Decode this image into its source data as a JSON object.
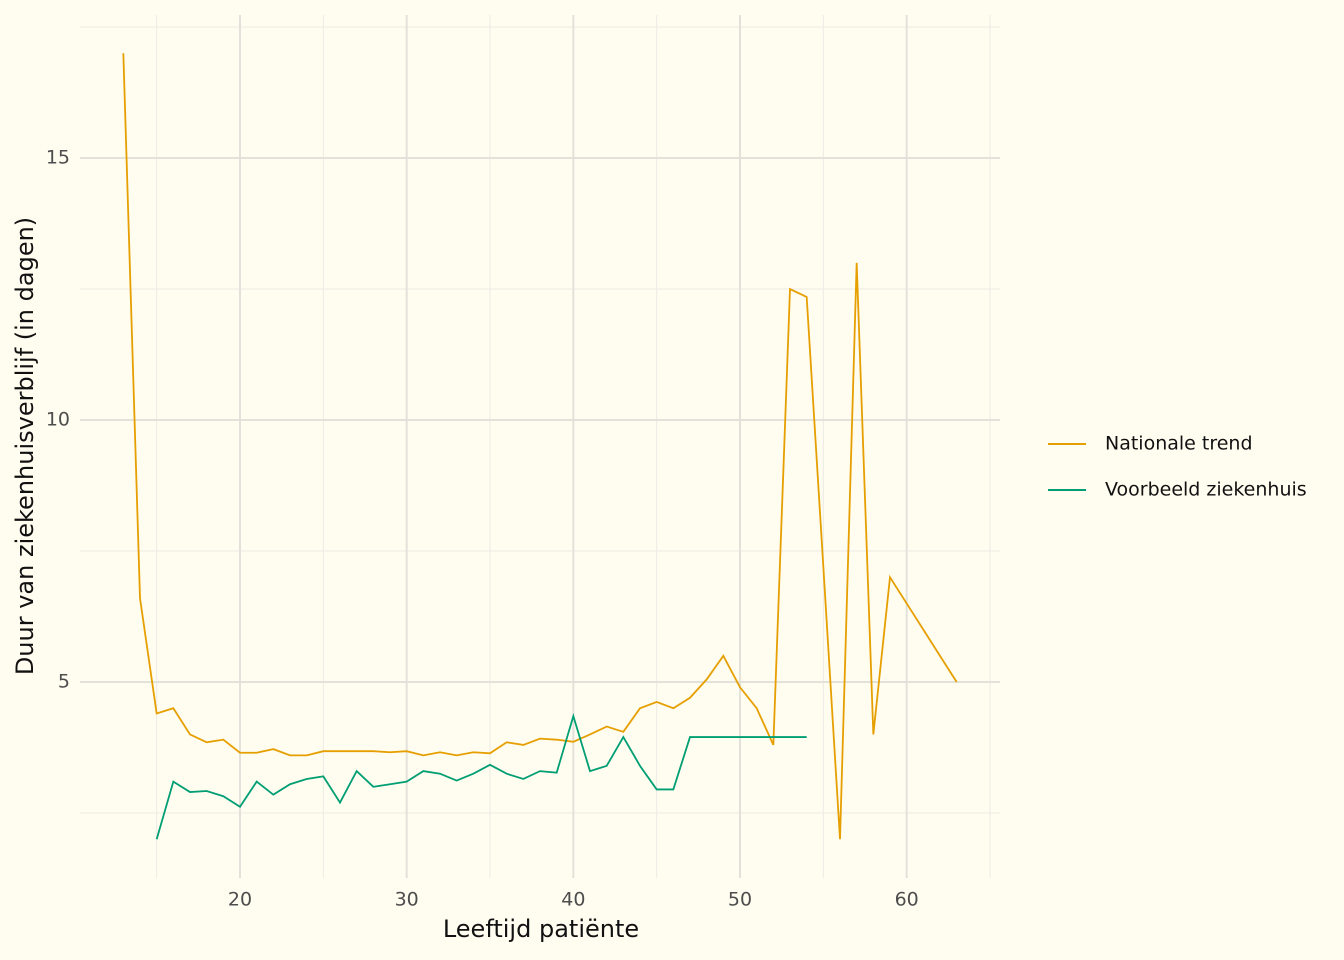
{
  "chart_data": {
    "type": "line",
    "x_label": "Leeftijd patiënte",
    "y_label": "Duur van ziekenhuisverblijf (in dagen)",
    "x": [
      13,
      14,
      15,
      16,
      17,
      18,
      19,
      20,
      21,
      22,
      23,
      24,
      25,
      26,
      27,
      28,
      29,
      30,
      31,
      32,
      33,
      34,
      35,
      36,
      37,
      38,
      39,
      40,
      41,
      42,
      43,
      44,
      45,
      46,
      47,
      48,
      49,
      50,
      51,
      52,
      53,
      54,
      55,
      56,
      57,
      58,
      59,
      60,
      61,
      62,
      63
    ],
    "series": [
      {
        "name": "Nationale trend",
        "color": "#e69f00",
        "values": [
          17.0,
          6.6,
          4.4,
          4.5,
          4.0,
          3.85,
          3.9,
          3.65,
          3.65,
          3.72,
          3.6,
          3.6,
          3.68,
          3.68,
          3.68,
          3.68,
          3.66,
          3.68,
          3.6,
          3.66,
          3.6,
          3.66,
          3.64,
          3.85,
          3.8,
          3.92,
          3.9,
          3.86,
          4.0,
          4.15,
          4.05,
          4.5,
          4.62,
          4.5,
          4.7,
          5.05,
          5.5,
          4.9,
          4.5,
          3.8,
          12.5,
          12.35,
          7.2,
          2.0,
          13.0,
          4.0,
          7.0,
          6.5,
          6.0,
          5.5,
          5.0
        ]
      },
      {
        "name": "Voorbeeld ziekenhuis",
        "color": "#009e73",
        "values": [
          null,
          null,
          2.0,
          3.1,
          2.9,
          2.92,
          2.82,
          2.62,
          3.1,
          2.85,
          3.05,
          3.15,
          3.2,
          2.7,
          3.3,
          3.0,
          3.05,
          3.1,
          3.3,
          3.25,
          3.12,
          3.25,
          3.42,
          3.25,
          3.15,
          3.3,
          3.27,
          4.35,
          3.3,
          3.4,
          3.95,
          3.4,
          2.95,
          2.95,
          3.95,
          3.95,
          3.95,
          3.95,
          3.95,
          3.95,
          3.95,
          3.95,
          null,
          null,
          null,
          null,
          null,
          null,
          null,
          null,
          null
        ]
      }
    ],
    "xlim": [
      10.4,
      65.6
    ],
    "ylim": [
      1.26,
      17.73
    ],
    "xticks": [
      20,
      30,
      40,
      50,
      60
    ],
    "yticks": [
      5,
      10,
      15
    ],
    "grid": true,
    "legend": "right"
  }
}
